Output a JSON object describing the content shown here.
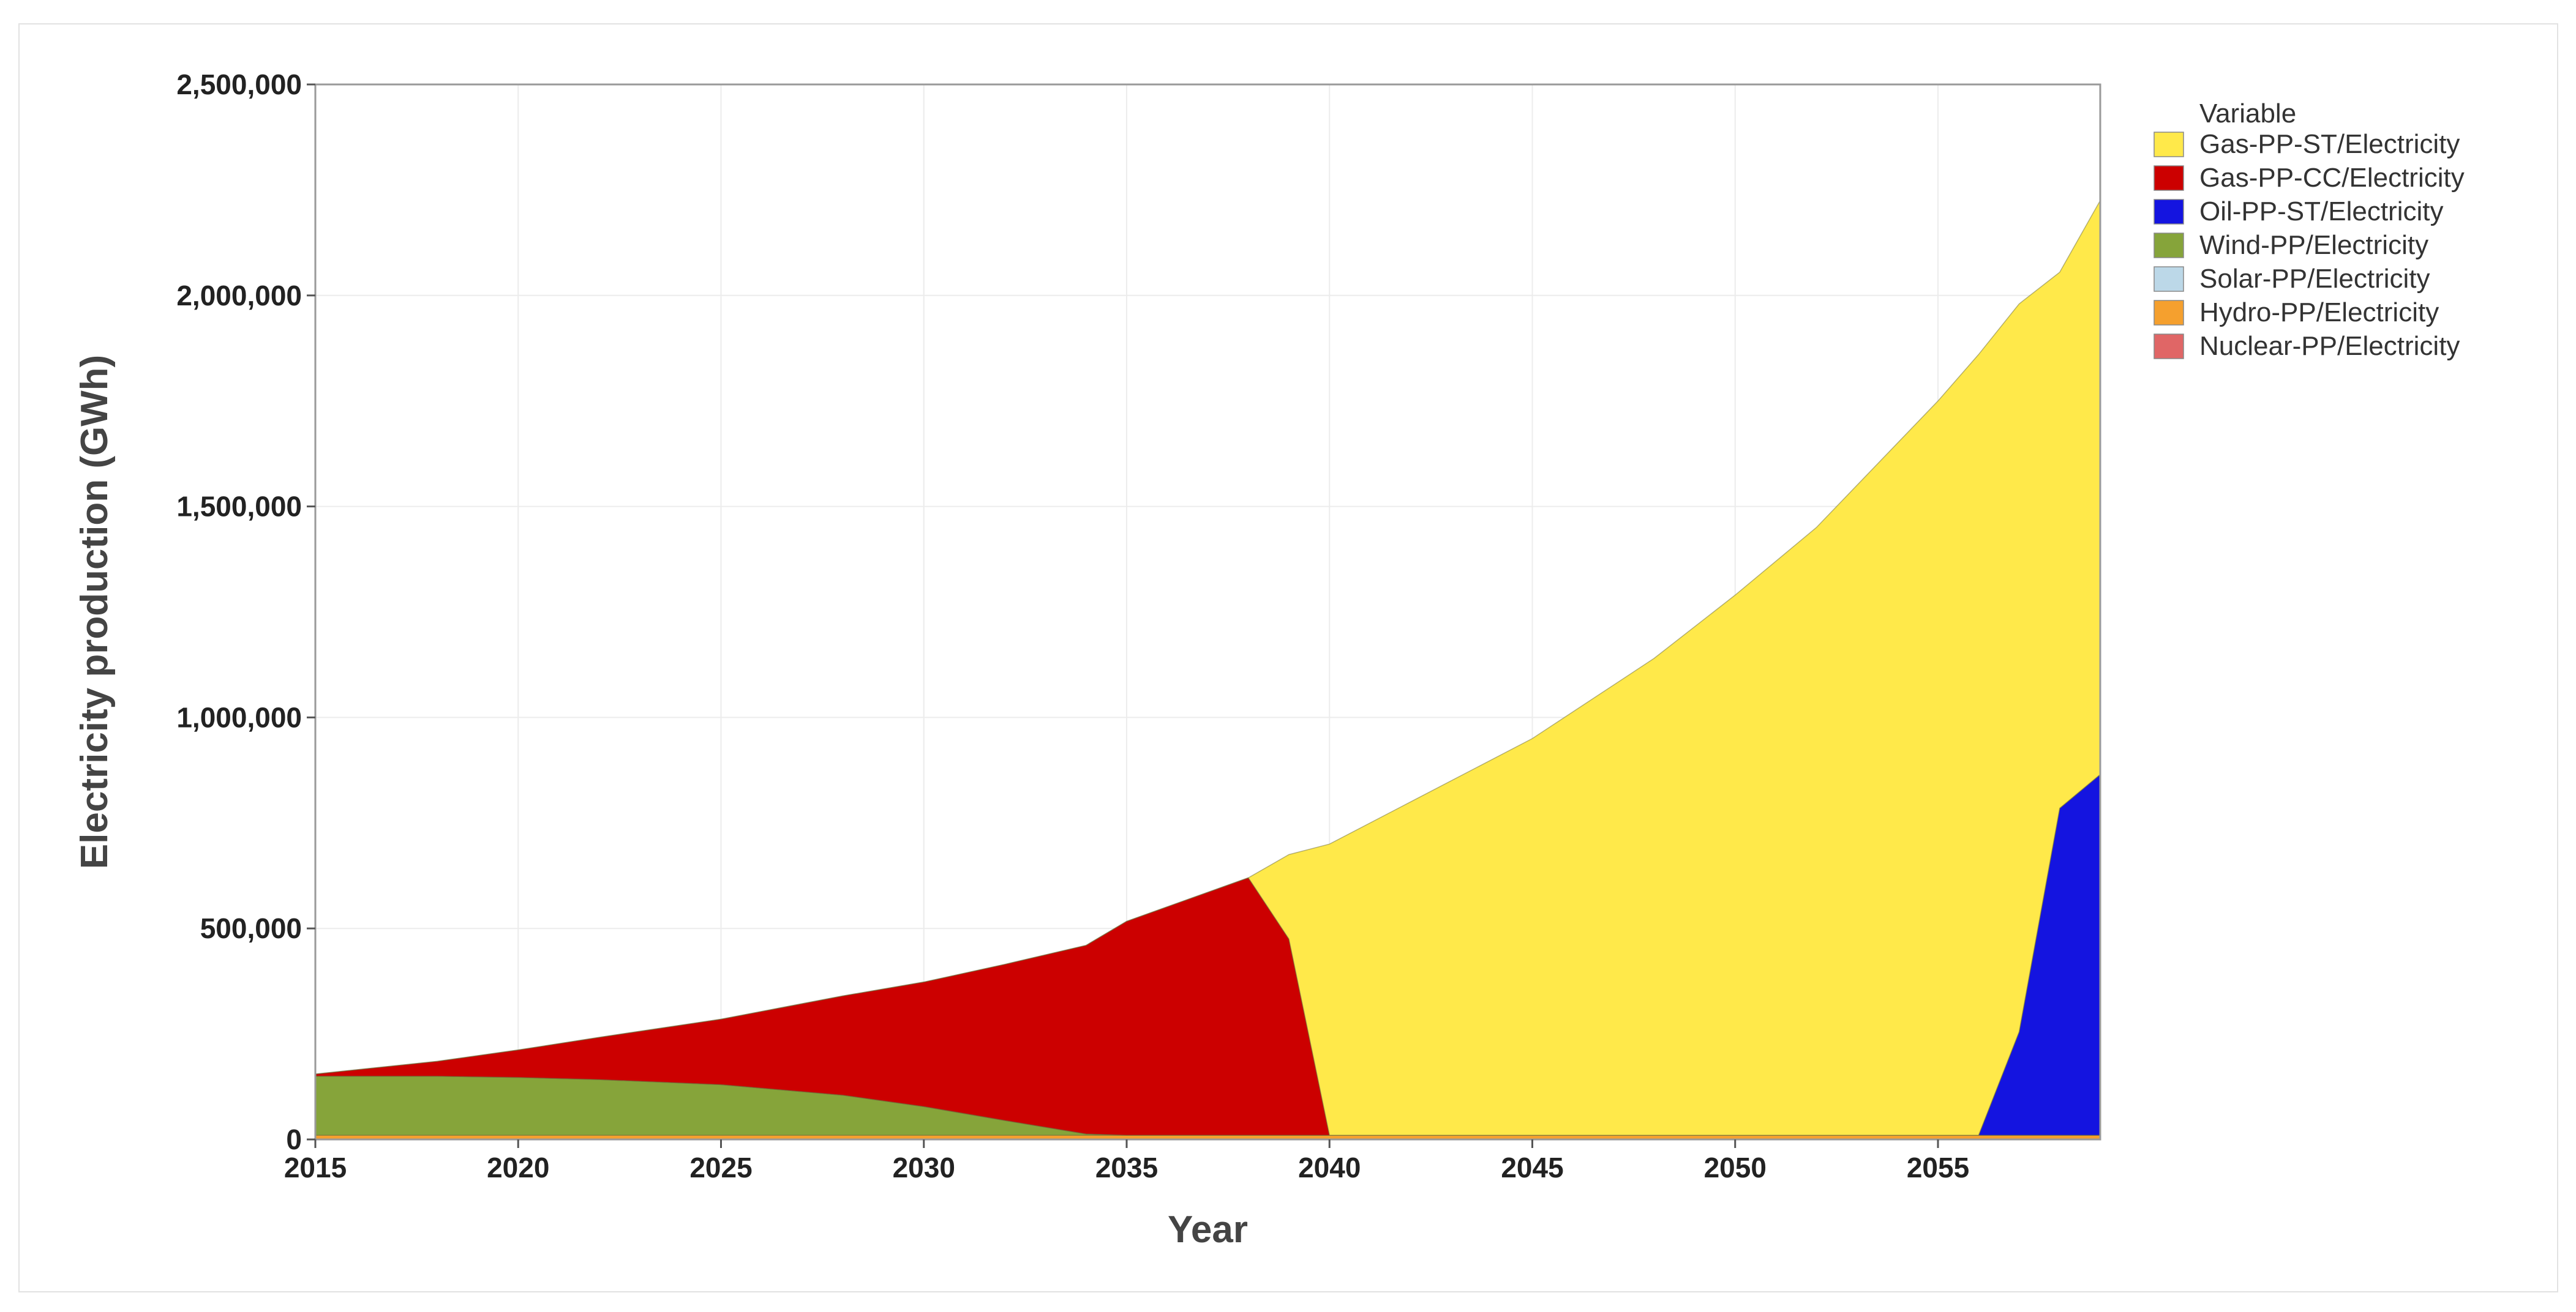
{
  "chart_data": {
    "type": "area",
    "stacked": true,
    "xlabel": "Year",
    "ylabel": "Electricity production (GWh)",
    "xlim": [
      2015,
      2059
    ],
    "ylim": [
      0,
      2500000
    ],
    "x_ticks": [
      2015,
      2020,
      2025,
      2030,
      2035,
      2040,
      2045,
      2050,
      2055
    ],
    "x_tick_labels": [
      "2015",
      "2020",
      "2025",
      "2030",
      "2035",
      "2040",
      "2045",
      "2050",
      "2055"
    ],
    "y_ticks": [
      0,
      500000,
      1000000,
      1500000,
      2000000,
      2500000
    ],
    "y_tick_labels": [
      "0",
      "500,000",
      "1,000,000",
      "1,500,000",
      "2,000,000",
      "2,500,000"
    ],
    "grid": true,
    "legend": {
      "title": "Variable",
      "placement": "top-right outside"
    },
    "x": [
      2015,
      2018,
      2020,
      2022,
      2025,
      2028,
      2030,
      2032,
      2034,
      2035,
      2038,
      2039,
      2040,
      2042,
      2045,
      2048,
      2050,
      2052,
      2055,
      2056,
      2057,
      2058,
      2059
    ],
    "series": [
      {
        "name": "Nuclear-PP/Electricity",
        "color": "#e06666",
        "values": [
          0,
          0,
          0,
          0,
          0,
          0,
          0,
          0,
          0,
          0,
          0,
          0,
          0,
          0,
          0,
          0,
          0,
          0,
          0,
          0,
          0,
          0,
          0
        ]
      },
      {
        "name": "Hydro-PP/Electricity",
        "color": "#f5a02e",
        "values": [
          10000,
          10000,
          10000,
          10000,
          10000,
          10000,
          10000,
          10000,
          10000,
          10000,
          10000,
          10000,
          10000,
          10000,
          10000,
          10000,
          10000,
          10000,
          10000,
          10000,
          10000,
          10000,
          10000
        ]
      },
      {
        "name": "Solar-PP/Electricity",
        "color": "#bcd8e8",
        "values": [
          0,
          0,
          0,
          0,
          0,
          0,
          0,
          0,
          0,
          0,
          0,
          0,
          0,
          0,
          0,
          0,
          0,
          0,
          0,
          0,
          0,
          0,
          0
        ]
      },
      {
        "name": "Wind-PP/Electricity",
        "color": "#86a43a",
        "values": [
          140000,
          140000,
          137000,
          132000,
          120000,
          95000,
          68000,
          35000,
          3000,
          0,
          0,
          0,
          0,
          0,
          0,
          0,
          0,
          0,
          0,
          0,
          0,
          0,
          0
        ]
      },
      {
        "name": "Oil-PP-ST/Electricity",
        "color": "#1414e0",
        "values": [
          0,
          0,
          0,
          0,
          0,
          0,
          0,
          0,
          0,
          0,
          0,
          0,
          0,
          0,
          0,
          0,
          0,
          0,
          0,
          0,
          245000,
          775000,
          855000
        ]
      },
      {
        "name": "Gas-PP-CC/Electricity",
        "color": "#cc0000",
        "values": [
          5000,
          35000,
          65000,
          100000,
          155000,
          235000,
          295000,
          370000,
          447000,
          507000,
          610000,
          465000,
          0,
          0,
          0,
          0,
          0,
          0,
          0,
          0,
          0,
          0,
          0
        ]
      },
      {
        "name": "Gas-PP-ST/Electricity",
        "color": "#ffe94a",
        "values": [
          0,
          0,
          0,
          0,
          0,
          0,
          0,
          0,
          0,
          0,
          0,
          200000,
          690000,
          790000,
          940000,
          1130000,
          1280000,
          1440000,
          1740000,
          1850000,
          1725000,
          1270000,
          1360000
        ]
      }
    ]
  }
}
